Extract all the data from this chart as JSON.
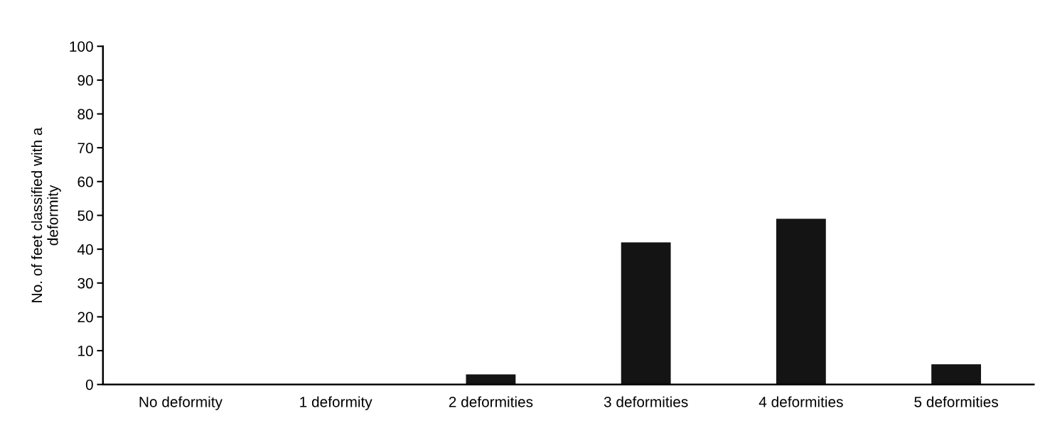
{
  "chart_data": {
    "type": "bar",
    "ylabel": "No. of feet classified with a\ndeformity",
    "categories": [
      "No deformity",
      "1 deformity",
      "2 deformities",
      "3 deformities",
      "4 deformities",
      "5 deformities"
    ],
    "values": [
      0,
      0,
      3,
      42,
      49,
      6
    ],
    "color": "#141414",
    "ylim": [
      0,
      100
    ],
    "yticks": [
      0,
      10,
      20,
      30,
      40,
      50,
      60,
      70,
      80,
      90,
      100
    ],
    "grid": false
  }
}
